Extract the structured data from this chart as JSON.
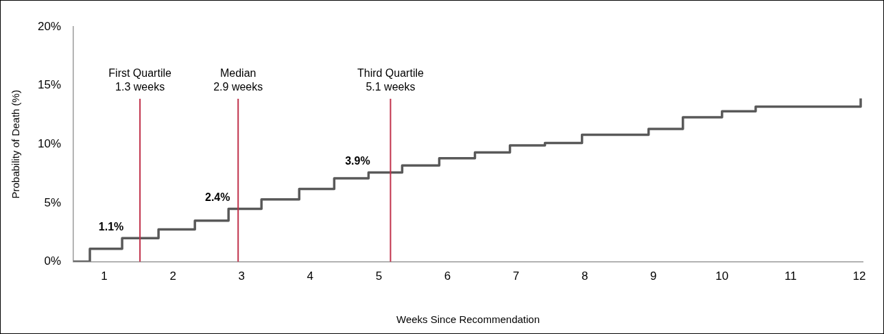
{
  "chart_data": {
    "type": "step",
    "xlabel": "Weeks Since Recommendation",
    "ylabel": "Probability of Death (%)",
    "xlim": [
      0.55,
      12.05
    ],
    "xticks": [
      1,
      2,
      3,
      4,
      5,
      6,
      7,
      8,
      9,
      10,
      11,
      12
    ],
    "ylim": [
      0,
      20
    ],
    "yticks": [
      {
        "value": 0,
        "label": "0%"
      },
      {
        "value": 5,
        "label": "5%"
      },
      {
        "value": 10,
        "label": "10%"
      },
      {
        "value": 15,
        "label": "15%"
      },
      {
        "value": 20,
        "label": "20%"
      }
    ],
    "grid": false,
    "legend": false,
    "marker": "none",
    "series": [
      {
        "color": "#595959",
        "x": [
          0.55,
          0.79,
          1.26,
          1.79,
          2.32,
          2.81,
          3.29,
          3.84,
          4.35,
          4.85,
          5.34,
          5.88,
          6.4,
          6.91,
          7.42,
          7.96,
          8.93,
          9.43,
          10.0,
          10.49,
          12.02
        ],
        "values": [
          0,
          1.1,
          2.0,
          2.75,
          3.5,
          4.5,
          5.3,
          6.2,
          7.1,
          7.6,
          8.2,
          8.8,
          9.3,
          9.9,
          10.1,
          10.8,
          11.3,
          12.3,
          12.8,
          13.2,
          13.9
        ]
      }
    ],
    "ref_lines": [
      {
        "axis": "x",
        "value": 1.52,
        "label": "First Quartile\n1.3 weeks",
        "color": "#c0304a"
      },
      {
        "axis": "x",
        "value": 2.95,
        "label": "Median\n2.9 weeks",
        "color": "#c0304a"
      },
      {
        "axis": "x",
        "value": 5.17,
        "label": "Third Quartile\n5.1 weeks",
        "color": "#c0304a"
      }
    ],
    "annotations": [
      {
        "text": "1.1%",
        "x": 1.26,
        "y": 2.0
      },
      {
        "text": "2.4%",
        "x": 2.81,
        "y": 4.5
      },
      {
        "text": "3.9%",
        "x": 4.85,
        "y": 7.6
      }
    ]
  }
}
